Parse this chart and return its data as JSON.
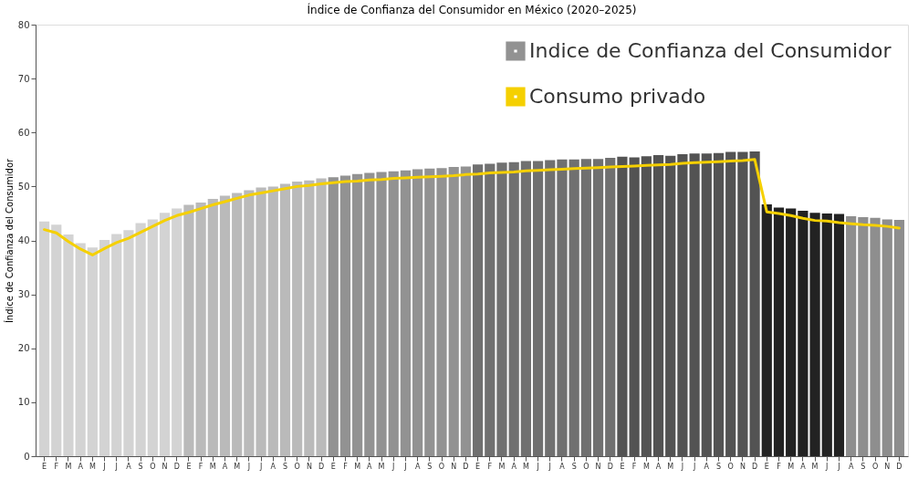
{
  "chart_data": {
    "type": "bar",
    "title": "Índice de Confianza del Consumidor en México (2020–2025)",
    "ylabel": "Índice de Confianza del Consumidor",
    "categories": [
      "E",
      "F",
      "M",
      "A",
      "M",
      "J",
      "J",
      "A",
      "S",
      "O",
      "N",
      "D",
      "E",
      "F",
      "M",
      "A",
      "M",
      "J",
      "J",
      "A",
      "S",
      "O",
      "N",
      "D",
      "E",
      "F",
      "M",
      "A",
      "M",
      "J",
      "J",
      "A",
      "S",
      "O",
      "N",
      "D",
      "E",
      "F",
      "M",
      "A",
      "M",
      "J",
      "J",
      "A",
      "S",
      "O",
      "N",
      "D",
      "E",
      "F",
      "M",
      "A",
      "M",
      "J",
      "J",
      "A",
      "S",
      "O",
      "N",
      "D",
      "E",
      "F",
      "M",
      "A",
      "M",
      "J",
      "J",
      "A",
      "S",
      "O",
      "N",
      "D"
    ],
    "series": [
      {
        "name": "Indice de Confianza del Consumidor",
        "color": "#929292",
        "colors": [
          "#d3d3d3",
          "#d3d3d3",
          "#d3d3d3",
          "#d3d3d3",
          "#d3d3d3",
          "#d3d3d3",
          "#d3d3d3",
          "#d3d3d3",
          "#d3d3d3",
          "#d3d3d3",
          "#d3d3d3",
          "#d3d3d3",
          "#bababa",
          "#bababa",
          "#bababa",
          "#bababa",
          "#bababa",
          "#bababa",
          "#bababa",
          "#bababa",
          "#bababa",
          "#bababa",
          "#bababa",
          "#bababa",
          "#929292",
          "#929292",
          "#929292",
          "#929292",
          "#929292",
          "#929292",
          "#929292",
          "#929292",
          "#929292",
          "#929292",
          "#929292",
          "#929292",
          "#707070",
          "#707070",
          "#707070",
          "#707070",
          "#707070",
          "#707070",
          "#707070",
          "#707070",
          "#707070",
          "#707070",
          "#707070",
          "#707070",
          "#535353",
          "#535353",
          "#535353",
          "#535353",
          "#535353",
          "#535353",
          "#535353",
          "#535353",
          "#535353",
          "#535353",
          "#535353",
          "#535353",
          "#222222",
          "#222222",
          "#222222",
          "#222222",
          "#222222",
          "#222222",
          "#222222",
          "#8e8e8e",
          "#8e8e8e",
          "#8e8e8e",
          "#8e8e8e",
          "#8e8e8e"
        ],
        "values": [
          43.5,
          42.9,
          41.1,
          39.5,
          38.7,
          40.1,
          41.2,
          41.9,
          43.2,
          43.9,
          45.1,
          45.9,
          46.6,
          47.0,
          47.7,
          48.3,
          48.8,
          49.3,
          49.8,
          50.0,
          50.5,
          50.9,
          51.1,
          51.5,
          51.7,
          52.0,
          52.3,
          52.5,
          52.7,
          52.8,
          53.0,
          53.2,
          53.3,
          53.4,
          53.6,
          53.7,
          54.1,
          54.2,
          54.4,
          54.5,
          54.7,
          54.7,
          54.9,
          55.0,
          55.0,
          55.1,
          55.1,
          55.3,
          55.5,
          55.4,
          55.6,
          55.8,
          55.7,
          56.0,
          56.1,
          56.1,
          56.2,
          56.4,
          56.4,
          56.5,
          46.7,
          46.1,
          45.9,
          45.5,
          45.1,
          45.0,
          44.9,
          44.5,
          44.3,
          44.2,
          43.9,
          43.8
        ]
      },
      {
        "name": "Consumo privado",
        "type": "line",
        "color": "#f5d000",
        "values": [
          42.0,
          41.4,
          39.8,
          38.4,
          37.3,
          38.5,
          39.6,
          40.4,
          41.5,
          42.6,
          43.7,
          44.6,
          45.2,
          45.9,
          46.6,
          47.2,
          47.8,
          48.4,
          48.8,
          49.2,
          49.6,
          50.0,
          50.2,
          50.5,
          50.7,
          50.9,
          51.0,
          51.2,
          51.3,
          51.5,
          51.6,
          51.7,
          51.8,
          51.9,
          52.0,
          52.2,
          52.3,
          52.5,
          52.6,
          52.7,
          52.9,
          53.0,
          53.1,
          53.2,
          53.3,
          53.4,
          53.5,
          53.6,
          53.7,
          53.8,
          53.9,
          54.0,
          54.1,
          54.3,
          54.4,
          54.5,
          54.6,
          54.7,
          54.8,
          55.0,
          45.3,
          45.0,
          44.6,
          44.1,
          43.7,
          43.6,
          43.3,
          43.1,
          42.9,
          42.8,
          42.6,
          42.3
        ]
      }
    ],
    "ylim": [
      0,
      80
    ],
    "yticks": [
      0,
      10,
      20,
      30,
      40,
      50,
      60,
      70,
      80
    ],
    "grid": false,
    "legend": "top right"
  }
}
